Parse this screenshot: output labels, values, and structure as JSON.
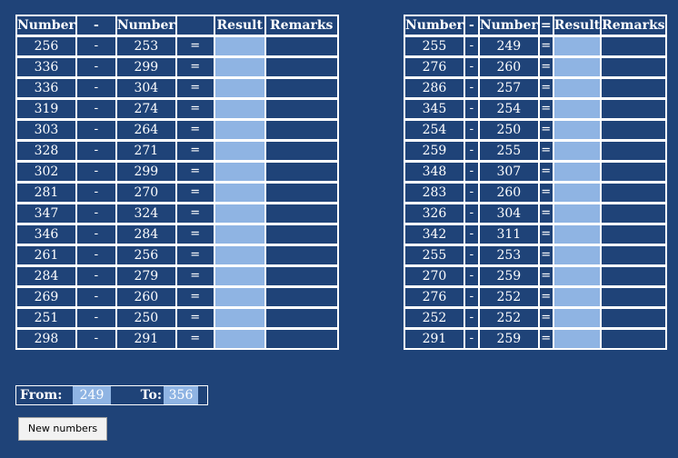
{
  "headers": {
    "left": [
      "Number",
      "-",
      "Number",
      "",
      "Result",
      "Remarks"
    ],
    "right": [
      "Number",
      "-",
      "Number",
      "=",
      "Result",
      "Remarks"
    ]
  },
  "operator": "-",
  "equals": "=",
  "left_rows": [
    {
      "a": "256",
      "b": "253"
    },
    {
      "a": "336",
      "b": "299"
    },
    {
      "a": "336",
      "b": "304"
    },
    {
      "a": "319",
      "b": "274"
    },
    {
      "a": "303",
      "b": "264"
    },
    {
      "a": "328",
      "b": "271"
    },
    {
      "a": "302",
      "b": "299"
    },
    {
      "a": "281",
      "b": "270"
    },
    {
      "a": "347",
      "b": "324"
    },
    {
      "a": "346",
      "b": "284"
    },
    {
      "a": "261",
      "b": "256"
    },
    {
      "a": "284",
      "b": "279"
    },
    {
      "a": "269",
      "b": "260"
    },
    {
      "a": "251",
      "b": "250"
    },
    {
      "a": "298",
      "b": "291"
    }
  ],
  "right_rows": [
    {
      "a": "255",
      "b": "249"
    },
    {
      "a": "276",
      "b": "260"
    },
    {
      "a": "286",
      "b": "257"
    },
    {
      "a": "345",
      "b": "254"
    },
    {
      "a": "254",
      "b": "250"
    },
    {
      "a": "259",
      "b": "255"
    },
    {
      "a": "348",
      "b": "307"
    },
    {
      "a": "283",
      "b": "260"
    },
    {
      "a": "326",
      "b": "304"
    },
    {
      "a": "342",
      "b": "311"
    },
    {
      "a": "255",
      "b": "253"
    },
    {
      "a": "270",
      "b": "259"
    },
    {
      "a": "276",
      "b": "252"
    },
    {
      "a": "252",
      "b": "252"
    },
    {
      "a": "291",
      "b": "259"
    }
  ],
  "range": {
    "from_label": "From:",
    "from_value": "249",
    "to_label": "To:",
    "to_value": "356"
  },
  "new_button_label": "New numbers",
  "colors": {
    "background": "#1f4378",
    "result_fill": "#8fb4e3",
    "grid": "#ffffff"
  }
}
